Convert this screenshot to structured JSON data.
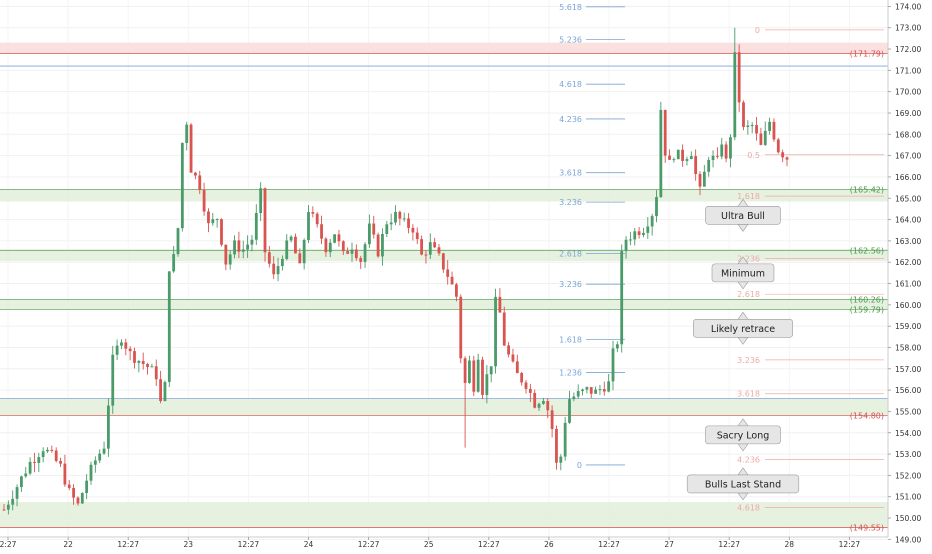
{
  "chart_data": {
    "type": "candlestick",
    "ylim": [
      148.5,
      174.3
    ],
    "x_tick_labels": [
      "2:27",
      "22",
      "12:27",
      "23",
      "12:27",
      "24",
      "12:27",
      "25",
      "12:27",
      "26",
      "12:27",
      "27",
      "12:27",
      "28",
      "12:27"
    ],
    "y_ticks": [
      149,
      150,
      151,
      152,
      153,
      154,
      155,
      156,
      157,
      158,
      159,
      160,
      161,
      162,
      163,
      164,
      165,
      166,
      167,
      168,
      169,
      170,
      171,
      172,
      173,
      174
    ],
    "y_tick_labels": [
      "149.00",
      "150.00",
      "151.00",
      "152.00",
      "153.00",
      "154.00",
      "155.00",
      "156.00",
      "157.00",
      "158.00",
      "159.00",
      "160.00",
      "161.00",
      "162.00",
      "163.00",
      "164.00",
      "165.00",
      "166.00",
      "167.00",
      "168.00",
      "169.00",
      "170.00",
      "171.00",
      "172.00",
      "173.00",
      "174.00"
    ],
    "colors": {
      "up": "#4a9a6a",
      "down": "#d9534f",
      "zone_green": "#e3f0dd",
      "zone_red": "#fbdddd",
      "fib_blue": "#7aa6d6",
      "fib_pink": "#f0a9a9"
    },
    "zones": [
      {
        "low": 171.8,
        "high": 172.3,
        "color": "red"
      },
      {
        "low": 164.85,
        "high": 165.42,
        "color": "green"
      },
      {
        "low": 162.05,
        "high": 162.56,
        "color": "green"
      },
      {
        "low": 159.79,
        "high": 160.26,
        "color": "green"
      },
      {
        "low": 154.8,
        "high": 155.6,
        "color": "green"
      },
      {
        "low": 149.55,
        "high": 150.75,
        "color": "green"
      }
    ],
    "levels": [
      {
        "value": 171.79,
        "label": "(171.79)",
        "color": "#d9534f"
      },
      {
        "value": 165.42,
        "label": "(165.42)",
        "color": "#4a9a4a"
      },
      {
        "value": 162.56,
        "label": "(162.56)",
        "color": "#4a9a4a"
      },
      {
        "value": 160.26,
        "label": "(160.26)",
        "color": "#4a9a4a"
      },
      {
        "value": 159.79,
        "label": "(159.79)",
        "color": "#4a9a4a"
      },
      {
        "value": 154.8,
        "label": "(154.80)",
        "color": "#d9534f"
      },
      {
        "value": 149.55,
        "label": "(149.55)",
        "color": "#d9534f"
      }
    ],
    "fib_blue": [
      {
        "label": "5.618",
        "value": 173.98
      },
      {
        "label": "5.236",
        "value": 172.44
      },
      {
        "label": "4.618",
        "value": 170.35
      },
      {
        "label": "4.236",
        "value": 168.72
      },
      {
        "label": "3.618",
        "value": 166.2
      },
      {
        "label": "3.236",
        "value": 164.82
      },
      {
        "label": "2.618",
        "value": 162.41
      },
      {
        "label": "3.236",
        "value": 160.97
      },
      {
        "label": "1.618",
        "value": 158.37
      },
      {
        "label": "1.236",
        "value": 156.83
      },
      {
        "label": "0",
        "value": 152.49
      }
    ],
    "fib_pink": [
      {
        "label": "0",
        "value": 172.9
      },
      {
        "label": "0.5",
        "value": 167.04
      },
      {
        "label": "1.618",
        "value": 165.1
      },
      {
        "label": "2.236",
        "value": 162.18
      },
      {
        "label": "2.618",
        "value": 160.5
      },
      {
        "label": "3.236",
        "value": 157.42
      },
      {
        "label": "3.618",
        "value": 155.83
      },
      {
        "label": "4.236",
        "value": 152.75
      },
      {
        "label": "4.618",
        "value": 150.5
      }
    ],
    "callouts": [
      {
        "text": "Ultra Bull",
        "value": 164.2
      },
      {
        "text": "Minimum",
        "value": 161.5
      },
      {
        "text": "Likely retrace",
        "value": 158.9
      },
      {
        "text": "Sacry Long",
        "value": 153.9
      },
      {
        "text": "Bulls Last Stand",
        "value": 151.6
      }
    ],
    "price_path": [
      [
        0,
        150.4
      ],
      [
        3,
        151.5
      ],
      [
        6,
        152.6
      ],
      [
        9,
        153.3
      ],
      [
        11,
        152.9
      ],
      [
        13,
        152.4
      ],
      [
        15,
        151.2
      ],
      [
        17,
        150.6
      ],
      [
        19,
        151.8
      ],
      [
        21,
        152.7
      ],
      [
        23,
        153.4
      ],
      [
        25,
        157.4
      ],
      [
        27,
        158.5
      ],
      [
        29,
        157.7
      ],
      [
        31,
        157.4
      ],
      [
        33,
        157.1
      ],
      [
        35,
        156.7
      ],
      [
        36,
        155.4
      ],
      [
        37,
        156.2
      ],
      [
        38,
        161.8
      ],
      [
        39,
        162.2
      ],
      [
        40,
        163.6
      ],
      [
        41,
        167.6
      ],
      [
        42,
        168.6
      ],
      [
        43,
        166.4
      ],
      [
        45,
        165.6
      ],
      [
        47,
        163.7
      ],
      [
        49,
        164.1
      ],
      [
        51,
        162.0
      ],
      [
        53,
        162.8
      ],
      [
        55,
        162.6
      ],
      [
        57,
        163.1
      ],
      [
        59,
        165.2
      ],
      [
        60,
        162.5
      ],
      [
        62,
        161.3
      ],
      [
        64,
        162.4
      ],
      [
        66,
        163.1
      ],
      [
        68,
        161.7
      ],
      [
        70,
        164.5
      ],
      [
        72,
        163.6
      ],
      [
        74,
        162.7
      ],
      [
        76,
        163.4
      ],
      [
        78,
        162.3
      ],
      [
        80,
        162.8
      ],
      [
        82,
        162.1
      ],
      [
        84,
        163.6
      ],
      [
        86,
        162.5
      ],
      [
        88,
        163.9
      ],
      [
        90,
        164.2
      ],
      [
        92,
        163.8
      ],
      [
        94,
        163.6
      ],
      [
        96,
        162.3
      ],
      [
        98,
        162.8
      ],
      [
        100,
        162.2
      ],
      [
        102,
        161.4
      ],
      [
        104,
        160.4
      ],
      [
        105,
        157.6
      ],
      [
        106,
        156.3
      ],
      [
        107,
        157.3
      ],
      [
        108,
        156.2
      ],
      [
        109,
        157.7
      ],
      [
        110,
        156.0
      ],
      [
        112,
        157.3
      ],
      [
        113,
        160.1
      ],
      [
        114,
        159.6
      ],
      [
        115,
        158.2
      ],
      [
        116,
        157.6
      ],
      [
        117,
        157.1
      ],
      [
        118,
        156.7
      ],
      [
        120,
        156.3
      ],
      [
        122,
        155.4
      ],
      [
        124,
        155.7
      ],
      [
        125,
        155.1
      ],
      [
        126,
        154.2
      ],
      [
        127,
        152.5
      ],
      [
        128,
        152.9
      ],
      [
        129,
        154.6
      ],
      [
        130,
        155.6
      ],
      [
        132,
        155.8
      ],
      [
        134,
        156.0
      ],
      [
        136,
        155.9
      ],
      [
        138,
        156.2
      ],
      [
        139,
        156.3
      ],
      [
        140,
        157.7
      ],
      [
        141,
        158.3
      ],
      [
        142,
        162.3
      ],
      [
        143,
        163.1
      ],
      [
        145,
        163.4
      ],
      [
        147,
        163.6
      ],
      [
        149,
        164.3
      ],
      [
        150,
        165.2
      ],
      [
        151,
        169.2
      ],
      [
        152,
        167.2
      ],
      [
        153,
        166.6
      ],
      [
        154,
        167.1
      ],
      [
        156,
        166.9
      ],
      [
        158,
        167.2
      ],
      [
        159,
        166.1
      ],
      [
        160,
        165.3
      ],
      [
        162,
        167.0
      ],
      [
        164,
        166.7
      ],
      [
        165,
        167.7
      ],
      [
        166,
        166.7
      ],
      [
        167,
        168.0
      ],
      [
        168,
        171.6
      ],
      [
        169,
        169.6
      ],
      [
        170,
        168.2
      ],
      [
        172,
        168.4
      ],
      [
        174,
        167.4
      ],
      [
        176,
        168.6
      ],
      [
        178,
        167.3
      ],
      [
        180,
        166.9
      ]
    ],
    "outliers": [
      {
        "candle": 106,
        "low": 153.3
      },
      {
        "candle": 168,
        "high": 173.0
      }
    ]
  }
}
